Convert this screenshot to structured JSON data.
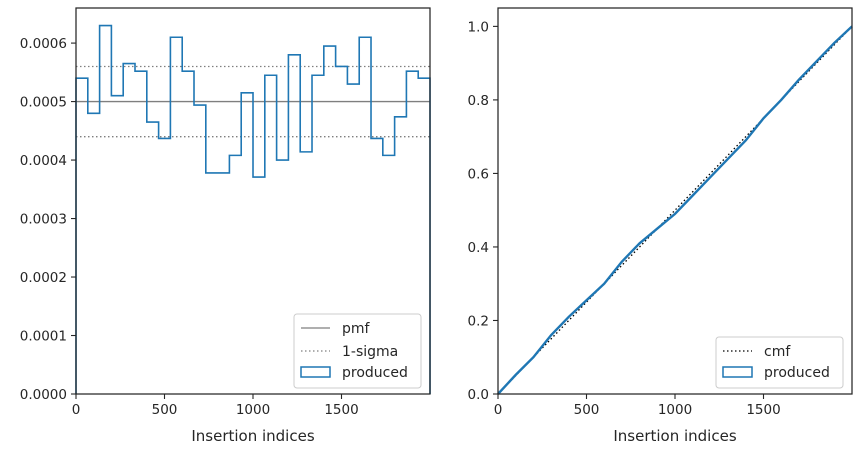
{
  "chart_data": [
    {
      "type": "step",
      "title": "",
      "xlabel": "Insertion indices",
      "ylabel": "",
      "xlim": [
        0,
        2000
      ],
      "ylim": [
        0,
        0.00066
      ],
      "x_ticks": [
        0,
        500,
        1000,
        1500
      ],
      "y_ticks": [
        0.0,
        0.0001,
        0.0002,
        0.0003,
        0.0004,
        0.0005,
        0.0006
      ],
      "x_tick_labels": [
        "0",
        "500",
        "1000",
        "1500"
      ],
      "y_tick_labels": [
        "0.0000",
        "0.0001",
        "0.0002",
        "0.0003",
        "0.0004",
        "0.0005",
        "0.0006"
      ],
      "grid": false,
      "legend_position": "lower right",
      "lines": [
        {
          "name": "pmf",
          "y": 0.0005,
          "style": "solid",
          "color": "#7f7f7f"
        },
        {
          "name": "1-sigma",
          "y": [
            0.00044,
            0.00056
          ],
          "style": "dotted",
          "color": "#7f7f7f"
        }
      ],
      "series": [
        {
          "name": "produced",
          "style": "step",
          "color": "#1f77b4",
          "bin_width": 66.67,
          "values": [
            0.00054,
            0.00048,
            0.00063,
            0.00051,
            0.000565,
            0.000552,
            0.000465,
            0.000437,
            0.00061,
            0.000552,
            0.000494,
            0.000378,
            0.000378,
            0.000408,
            0.000515,
            0.000371,
            0.000545,
            0.0004,
            0.00058,
            0.000414,
            0.000545,
            0.000595,
            0.00056,
            0.00053,
            0.00061,
            0.000437,
            0.000408,
            0.000474,
            0.000552,
            0.00054
          ]
        }
      ]
    },
    {
      "type": "line",
      "title": "",
      "xlabel": "Insertion indices",
      "ylabel": "",
      "xlim": [
        0,
        2000
      ],
      "ylim": [
        0,
        1.05
      ],
      "x_ticks": [
        0,
        500,
        1000,
        1500
      ],
      "y_ticks": [
        0.0,
        0.2,
        0.4,
        0.6,
        0.8,
        1.0
      ],
      "x_tick_labels": [
        "0",
        "500",
        "1000",
        "1500"
      ],
      "y_tick_labels": [
        "0.0",
        "0.2",
        "0.4",
        "0.6",
        "0.8",
        "1.0"
      ],
      "grid": false,
      "legend_position": "lower right",
      "series": [
        {
          "name": "cmf",
          "style": "dotted",
          "color": "#000000",
          "x": [
            0,
            2000
          ],
          "y": [
            0.0,
            1.0
          ]
        },
        {
          "name": "produced",
          "style": "solid",
          "color": "#1f77b4",
          "x": [
            0,
            100,
            200,
            300,
            400,
            500,
            600,
            700,
            800,
            900,
            1000,
            1100,
            1200,
            1300,
            1400,
            1500,
            1600,
            1700,
            1800,
            1900,
            2000
          ],
          "y": [
            0.0,
            0.052,
            0.1,
            0.16,
            0.21,
            0.255,
            0.3,
            0.36,
            0.41,
            0.45,
            0.49,
            0.54,
            0.59,
            0.64,
            0.69,
            0.75,
            0.8,
            0.855,
            0.905,
            0.955,
            1.0
          ]
        }
      ]
    }
  ]
}
